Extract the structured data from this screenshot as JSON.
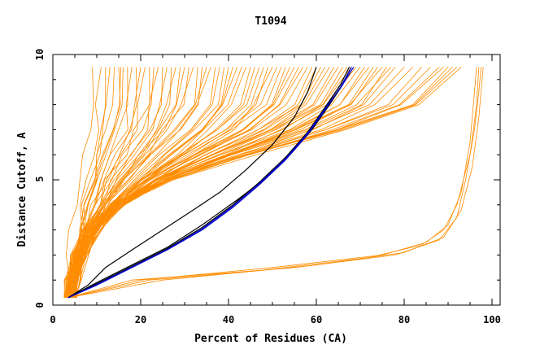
{
  "chart_data": {
    "type": "line",
    "title": "T1094",
    "xlabel": "Percent of Residues (CA)",
    "ylabel": "Distance Cutoff, A",
    "xlim": [
      0,
      102
    ],
    "ylim": [
      0,
      10
    ],
    "x_ticks": [
      "0",
      "20",
      "40",
      "60",
      "80",
      "100"
    ],
    "y_ticks": [
      "0",
      "5",
      "10"
    ],
    "grid": false,
    "legend": "none",
    "colors": {
      "bundle": "#ff8c00",
      "highlight_black": "#000000",
      "highlight_blue": "#0000cc",
      "axes": "#000000"
    },
    "bundle_profiles": [
      [
        0,
        0.3
      ],
      [
        0.08,
        1.0
      ],
      [
        0.2,
        2.0
      ],
      [
        0.32,
        3.0
      ],
      [
        0.45,
        4.0
      ],
      [
        0.6,
        5.0
      ],
      [
        0.75,
        6.0
      ],
      [
        0.88,
        7.0
      ],
      [
        0.96,
        8.0
      ],
      [
        1.0,
        9.5
      ]
    ],
    "bundle_curves_x_at_y95": [
      9,
      11,
      12,
      13,
      14,
      15,
      15.5,
      16,
      17,
      18,
      19,
      20,
      21,
      22,
      23,
      24,
      25,
      26,
      27,
      28,
      29,
      30,
      31,
      32,
      33,
      34,
      35,
      36,
      37,
      38,
      39,
      40,
      41,
      42,
      43,
      44,
      45,
      46,
      47,
      48,
      49,
      50,
      51,
      52,
      53,
      54,
      55,
      56,
      57,
      58,
      59,
      60,
      61,
      62,
      63,
      64,
      65,
      66,
      67,
      68,
      69,
      70,
      71,
      72,
      73,
      74,
      75,
      76,
      77,
      78,
      80,
      82,
      84,
      86,
      88,
      89,
      90,
      91,
      92,
      93
    ],
    "late_curves": [
      [
        [
          3.5,
          0.3
        ],
        [
          20,
          1.0
        ],
        [
          50,
          1.5
        ],
        [
          75,
          2.0
        ],
        [
          85,
          2.5
        ],
        [
          90,
          3.2
        ],
        [
          93,
          4.5
        ],
        [
          95,
          6.5
        ],
        [
          96,
          8.5
        ],
        [
          96.5,
          9.5
        ]
      ],
      [
        [
          3.5,
          0.3
        ],
        [
          22,
          1.0
        ],
        [
          55,
          1.5
        ],
        [
          78,
          2.0
        ],
        [
          88,
          2.6
        ],
        [
          92,
          3.5
        ],
        [
          94,
          5.0
        ],
        [
          96,
          7.0
        ],
        [
          97,
          8.5
        ],
        [
          97.5,
          9.5
        ]
      ],
      [
        [
          3.5,
          0.3
        ],
        [
          18,
          1.0
        ],
        [
          48,
          1.4
        ],
        [
          72,
          1.9
        ],
        [
          84,
          2.4
        ],
        [
          89,
          3.0
        ],
        [
          92,
          4.0
        ],
        [
          95,
          6.0
        ],
        [
          96.5,
          8.0
        ],
        [
          97,
          9.5
        ]
      ],
      [
        [
          3.5,
          0.3
        ],
        [
          25,
          1.0
        ],
        [
          60,
          1.6
        ],
        [
          80,
          2.1
        ],
        [
          89,
          2.7
        ],
        [
          93,
          3.8
        ],
        [
          95.5,
          5.5
        ],
        [
          97,
          7.5
        ],
        [
          98,
          9.5
        ]
      ]
    ],
    "series": [
      {
        "color": "#000000",
        "points": [
          [
            3.5,
            0.3
          ],
          [
            8,
            0.8
          ],
          [
            12,
            1.5
          ],
          [
            18,
            2.2
          ],
          [
            25,
            3.0
          ],
          [
            32,
            3.8
          ],
          [
            38,
            4.5
          ],
          [
            44,
            5.4
          ],
          [
            50,
            6.4
          ],
          [
            55,
            7.5
          ],
          [
            58,
            8.5
          ],
          [
            60,
            9.5
          ]
        ]
      },
      {
        "color": "#000000",
        "points": [
          [
            3.5,
            0.3
          ],
          [
            10,
            0.9
          ],
          [
            18,
            1.6
          ],
          [
            26,
            2.3
          ],
          [
            34,
            3.2
          ],
          [
            42,
            4.2
          ],
          [
            48,
            5.0
          ],
          [
            54,
            6.0
          ],
          [
            59,
            7.0
          ],
          [
            63,
            8.0
          ],
          [
            66,
            8.8
          ],
          [
            68,
            9.5
          ]
        ]
      },
      {
        "color": "#000000",
        "points": [
          [
            3.5,
            0.3
          ],
          [
            10,
            0.85
          ],
          [
            18,
            1.55
          ],
          [
            26,
            2.25
          ],
          [
            34,
            3.1
          ],
          [
            41,
            4.0
          ],
          [
            47,
            4.9
          ],
          [
            53,
            5.9
          ],
          [
            58,
            6.9
          ],
          [
            62,
            7.9
          ],
          [
            65.5,
            8.8
          ],
          [
            67.5,
            9.5
          ]
        ]
      },
      {
        "color": "#0000cc",
        "points": [
          [
            3.5,
            0.3
          ],
          [
            10,
            0.8
          ],
          [
            18,
            1.5
          ],
          [
            26,
            2.2
          ],
          [
            34,
            3.0
          ],
          [
            41,
            3.9
          ],
          [
            47,
            4.8
          ],
          [
            53,
            5.8
          ],
          [
            58,
            6.8
          ],
          [
            62,
            7.8
          ],
          [
            65.5,
            8.7
          ],
          [
            68,
            9.5
          ]
        ]
      },
      {
        "color": "#0000cc",
        "points": [
          [
            3.5,
            0.3
          ],
          [
            10,
            0.82
          ],
          [
            18,
            1.52
          ],
          [
            26,
            2.22
          ],
          [
            34,
            3.05
          ],
          [
            41,
            3.95
          ],
          [
            47,
            4.85
          ],
          [
            53,
            5.85
          ],
          [
            58,
            6.85
          ],
          [
            62,
            7.85
          ],
          [
            65.8,
            8.75
          ],
          [
            68.5,
            9.5
          ]
        ]
      }
    ]
  }
}
